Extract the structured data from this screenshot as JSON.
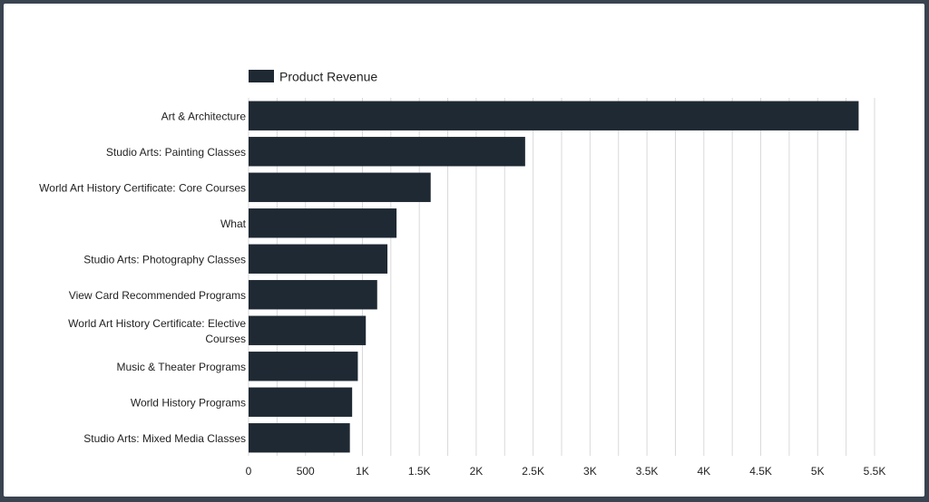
{
  "chart_data": {
    "type": "bar",
    "orientation": "horizontal",
    "categories": [
      "Art & Architecture",
      "Studio Arts: Painting Classes",
      "World Art History Certificate: Core Courses",
      "What",
      "Studio Arts: Photography Classes",
      "View Card Recommended Programs",
      "World Art History Certificate: Elective Courses",
      "Music & Theater Programs",
      "World History Programs",
      "Studio Arts: Mixed Media Classes"
    ],
    "series": [
      {
        "name": "Product Revenue",
        "values": [
          5360,
          2430,
          1600,
          1300,
          1220,
          1130,
          1030,
          960,
          910,
          890
        ]
      }
    ],
    "xlim": [
      0,
      5500
    ],
    "x_ticks": [
      0,
      500,
      1000,
      1500,
      2000,
      2500,
      3000,
      3500,
      4000,
      4500,
      5000,
      5500
    ],
    "x_tick_labels": [
      "0",
      "500",
      "1K",
      "1.5K",
      "2K",
      "2.5K",
      "3K",
      "3.5K",
      "4K",
      "4.5K",
      "5K",
      "5.5K"
    ],
    "title": "",
    "xlabel": "",
    "ylabel": "",
    "grid": true,
    "legend_position": "top-left",
    "colors": {
      "bar": "#1f2933",
      "grid": "#d9d9d9",
      "background": "#ffffff",
      "frame": "#3a4350"
    }
  }
}
